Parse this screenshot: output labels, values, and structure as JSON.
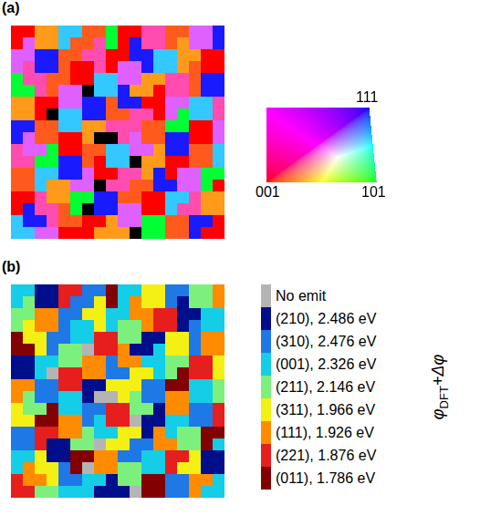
{
  "chart_data": [
    {
      "type": "heatmap",
      "panel": "(a)",
      "tick_labels": false,
      "colors": [
        "#000000",
        "#ff9a1a",
        "#ff5a1e",
        "#ff0000",
        "#e060ff",
        "#ff4cb0",
        "#1a1aff",
        "#33c8ff",
        "#00ff33"
      ],
      "key": {
        "type": "ipf_triangle",
        "corners": [
          "001",
          "101",
          "111"
        ]
      },
      "cells": [
        [
          3,
          3,
          1,
          1,
          7,
          7,
          2,
          2,
          8,
          3,
          3,
          5,
          5,
          2,
          2,
          4,
          4,
          6
        ],
        [
          3,
          4,
          1,
          1,
          7,
          2,
          2,
          5,
          8,
          3,
          6,
          5,
          5,
          2,
          1,
          4,
          4,
          6
        ],
        [
          4,
          4,
          6,
          6,
          2,
          2,
          5,
          5,
          3,
          3,
          6,
          6,
          7,
          7,
          1,
          1,
          3,
          3
        ],
        [
          4,
          5,
          6,
          6,
          2,
          3,
          3,
          5,
          3,
          4,
          4,
          6,
          7,
          7,
          1,
          2,
          3,
          3
        ],
        [
          8,
          5,
          5,
          2,
          2,
          3,
          3,
          7,
          7,
          4,
          4,
          1,
          1,
          5,
          5,
          2,
          6,
          6
        ],
        [
          8,
          8,
          5,
          2,
          4,
          4,
          0,
          7,
          7,
          6,
          1,
          1,
          3,
          5,
          5,
          2,
          6,
          6
        ],
        [
          1,
          1,
          3,
          3,
          4,
          4,
          6,
          6,
          2,
          6,
          6,
          3,
          3,
          4,
          4,
          7,
          7,
          5
        ],
        [
          1,
          1,
          3,
          0,
          7,
          7,
          6,
          6,
          2,
          2,
          5,
          5,
          3,
          4,
          8,
          7,
          7,
          5
        ],
        [
          6,
          6,
          2,
          2,
          7,
          7,
          1,
          1,
          5,
          5,
          5,
          2,
          2,
          8,
          8,
          3,
          3,
          4
        ],
        [
          6,
          4,
          2,
          2,
          3,
          3,
          1,
          0,
          0,
          5,
          4,
          2,
          2,
          6,
          6,
          3,
          3,
          4
        ],
        [
          5,
          4,
          4,
          8,
          3,
          3,
          2,
          2,
          7,
          7,
          4,
          4,
          1,
          6,
          6,
          2,
          2,
          7
        ],
        [
          5,
          5,
          8,
          8,
          6,
          6,
          2,
          3,
          7,
          7,
          0,
          1,
          1,
          3,
          3,
          2,
          2,
          7
        ],
        [
          2,
          2,
          7,
          7,
          6,
          6,
          4,
          3,
          3,
          5,
          5,
          1,
          6,
          3,
          4,
          4,
          8,
          8
        ],
        [
          2,
          2,
          7,
          1,
          1,
          4,
          4,
          0,
          5,
          5,
          2,
          2,
          6,
          6,
          4,
          4,
          8,
          3
        ],
        [
          3,
          3,
          5,
          1,
          1,
          8,
          8,
          6,
          6,
          2,
          2,
          3,
          3,
          7,
          7,
          5,
          1,
          1
        ],
        [
          3,
          6,
          5,
          5,
          2,
          8,
          0,
          6,
          6,
          4,
          4,
          3,
          3,
          7,
          5,
          5,
          1,
          1
        ],
        [
          7,
          6,
          6,
          5,
          2,
          2,
          3,
          3,
          1,
          4,
          4,
          8,
          8,
          2,
          2,
          6,
          6,
          3
        ],
        [
          7,
          7,
          4,
          4,
          3,
          3,
          3,
          1,
          1,
          1,
          0,
          8,
          8,
          2,
          2,
          6,
          3,
          3
        ]
      ]
    },
    {
      "type": "heatmap",
      "panel": "(b)",
      "tick_labels": false,
      "legend": "right",
      "legend_title": {
        "base": "φ",
        "subscript": "DFT",
        "suffix": "+Δφ"
      },
      "levels": [
        {
          "label": "No emit"
        },
        {
          "value": 2.486,
          "label": "(210), 2.486 eV"
        },
        {
          "value": 2.476,
          "label": "(310), 2.476 eV"
        },
        {
          "value": 2.326,
          "label": "(001), 2.326 eV"
        },
        {
          "value": 2.146,
          "label": "(211), 2.146 eV"
        },
        {
          "value": 1.966,
          "label": "(311), 1.966 eV"
        },
        {
          "value": 1.926,
          "label": "(111), 1.926 eV"
        },
        {
          "value": 1.876,
          "label": "(221), 1.876 eV"
        },
        {
          "value": 1.786,
          "label": "(011), 1.786 eV"
        }
      ],
      "colors": [
        "#b4b4b4",
        "#000e8c",
        "#1e78e6",
        "#14cde6",
        "#7cf07c",
        "#f5f014",
        "#ff8c00",
        "#e61e1e",
        "#820000"
      ],
      "cells": [
        [
          3,
          3,
          1,
          1,
          7,
          7,
          2,
          2,
          8,
          3,
          3,
          5,
          5,
          2,
          2,
          4,
          4,
          6
        ],
        [
          3,
          4,
          1,
          1,
          7,
          2,
          2,
          5,
          8,
          3,
          6,
          5,
          5,
          2,
          1,
          4,
          4,
          6
        ],
        [
          4,
          4,
          6,
          6,
          2,
          2,
          5,
          5,
          3,
          3,
          6,
          6,
          7,
          7,
          1,
          1,
          3,
          3
        ],
        [
          4,
          5,
          6,
          6,
          2,
          3,
          3,
          5,
          3,
          4,
          4,
          6,
          7,
          7,
          1,
          2,
          3,
          3
        ],
        [
          8,
          5,
          5,
          2,
          2,
          3,
          3,
          7,
          7,
          4,
          4,
          1,
          1,
          5,
          5,
          2,
          6,
          6
        ],
        [
          8,
          8,
          5,
          2,
          4,
          4,
          0,
          7,
          7,
          6,
          1,
          1,
          3,
          5,
          5,
          2,
          6,
          6
        ],
        [
          1,
          1,
          3,
          3,
          4,
          4,
          6,
          6,
          2,
          6,
          6,
          3,
          3,
          4,
          4,
          7,
          7,
          5
        ],
        [
          1,
          1,
          3,
          0,
          7,
          7,
          6,
          6,
          2,
          2,
          5,
          5,
          3,
          4,
          8,
          7,
          7,
          5
        ],
        [
          6,
          6,
          2,
          2,
          7,
          7,
          1,
          1,
          5,
          5,
          5,
          2,
          2,
          8,
          8,
          3,
          3,
          4
        ],
        [
          6,
          4,
          2,
          2,
          3,
          3,
          1,
          0,
          0,
          5,
          4,
          2,
          2,
          6,
          6,
          3,
          3,
          4
        ],
        [
          5,
          4,
          4,
          8,
          3,
          3,
          2,
          2,
          7,
          7,
          4,
          4,
          1,
          6,
          6,
          2,
          2,
          7
        ],
        [
          5,
          5,
          8,
          8,
          6,
          6,
          2,
          3,
          7,
          7,
          0,
          1,
          1,
          3,
          3,
          2,
          2,
          7
        ],
        [
          2,
          2,
          7,
          7,
          6,
          6,
          4,
          3,
          3,
          5,
          5,
          1,
          6,
          3,
          4,
          4,
          8,
          8
        ],
        [
          2,
          2,
          7,
          1,
          1,
          4,
          4,
          0,
          5,
          5,
          2,
          2,
          6,
          6,
          4,
          4,
          8,
          3
        ],
        [
          3,
          3,
          5,
          1,
          1,
          8,
          8,
          6,
          6,
          2,
          2,
          3,
          3,
          7,
          7,
          5,
          1,
          1
        ],
        [
          3,
          6,
          5,
          5,
          2,
          8,
          0,
          6,
          6,
          4,
          4,
          3,
          3,
          7,
          5,
          5,
          1,
          1
        ],
        [
          7,
          6,
          6,
          5,
          2,
          2,
          3,
          3,
          1,
          4,
          4,
          8,
          8,
          2,
          2,
          6,
          6,
          3
        ],
        [
          7,
          7,
          4,
          4,
          3,
          3,
          3,
          1,
          1,
          1,
          0,
          8,
          8,
          2,
          2,
          6,
          3,
          3
        ]
      ]
    }
  ]
}
